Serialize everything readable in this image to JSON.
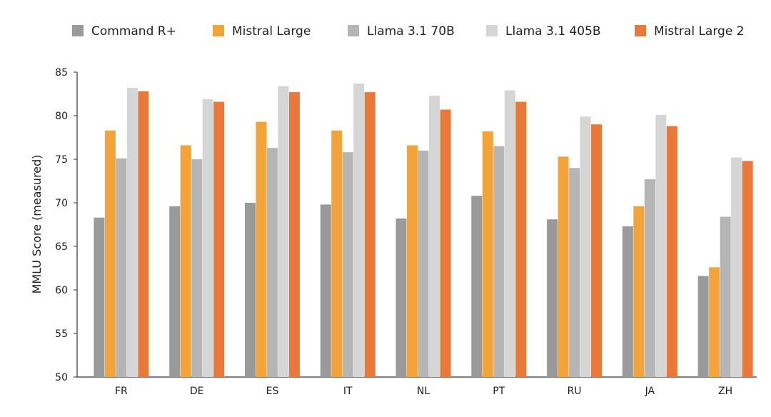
{
  "chart_data": {
    "type": "bar",
    "ylabel": "MMLU Score (measured)",
    "xlabel": "",
    "title": "",
    "ylim": [
      50,
      85
    ],
    "yticks": [
      50,
      55,
      60,
      65,
      70,
      75,
      80,
      85
    ],
    "grid": false,
    "legend_position": "top",
    "categories": [
      "FR",
      "DE",
      "ES",
      "IT",
      "NL",
      "PT",
      "RU",
      "JA",
      "ZH"
    ],
    "series": [
      {
        "name": "Command R+",
        "color": "#9a9a9a",
        "values": [
          68.3,
          69.6,
          70.0,
          69.8,
          68.2,
          70.8,
          68.1,
          67.3,
          61.6
        ]
      },
      {
        "name": "Mistral Large",
        "color": "#f2a33a",
        "values": [
          78.3,
          76.6,
          79.3,
          78.3,
          76.6,
          78.2,
          75.3,
          69.6,
          62.6
        ]
      },
      {
        "name": "Llama 3.1 70B",
        "color": "#b5b5b5",
        "values": [
          75.1,
          75.0,
          76.3,
          75.8,
          76.0,
          76.5,
          74.0,
          72.7,
          68.4
        ]
      },
      {
        "name": "Llama 3.1 405B",
        "color": "#d5d5d5",
        "values": [
          83.2,
          81.9,
          83.4,
          83.7,
          82.3,
          82.9,
          79.9,
          80.1,
          75.2
        ]
      },
      {
        "name": "Mistral Large 2",
        "color": "#e9793a",
        "values": [
          82.8,
          81.6,
          82.7,
          82.7,
          80.7,
          81.6,
          79.0,
          78.8,
          74.8
        ]
      }
    ]
  }
}
